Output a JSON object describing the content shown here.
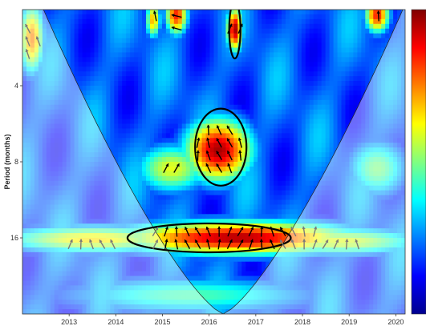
{
  "chart_data": {
    "type": "heatmap",
    "subtype": "wavelet-coherence",
    "ylabel": "Period (months)",
    "xlabel": "",
    "x_ticks": [
      "2013",
      "2014",
      "2015",
      "2016",
      "2017",
      "2018",
      "2019",
      "2020"
    ],
    "x_tick_values": [
      2013,
      2014,
      2015,
      2016,
      2017,
      2018,
      2019,
      2020
    ],
    "xlim": [
      2012.0,
      2020.2
    ],
    "y_ticks": [
      "4",
      "8",
      "16"
    ],
    "y_tick_values": [
      4,
      8,
      16
    ],
    "ylim_period": [
      2,
      32
    ],
    "y_scale": "log2",
    "y_inverted": true,
    "colorbar": {
      "position": "right",
      "range": [
        0,
        1
      ],
      "colormap": "jet",
      "tick_labels_visible": false
    },
    "hotspots": [
      {
        "x": 2016.55,
        "period": 2.4,
        "value": 0.97,
        "sx": 0.13,
        "sy": 0.22
      },
      {
        "x": 2015.3,
        "period": 2.1,
        "value": 0.85,
        "sx": 0.18,
        "sy": 0.2
      },
      {
        "x": 2014.8,
        "period": 2.2,
        "value": 0.7,
        "sx": 0.12,
        "sy": 0.18
      },
      {
        "x": 2019.6,
        "period": 2.1,
        "value": 0.85,
        "sx": 0.2,
        "sy": 0.18
      },
      {
        "x": 2012.2,
        "period": 2.6,
        "value": 0.75,
        "sx": 0.2,
        "sy": 0.35
      },
      {
        "x": 2016.2,
        "period": 7.2,
        "value": 0.96,
        "sx": 0.55,
        "sy": 0.32
      },
      {
        "x": 2015.2,
        "period": 8.5,
        "value": 0.6,
        "sx": 0.6,
        "sy": 0.25
      },
      {
        "x": 2016.6,
        "period": 16.0,
        "value": 0.95,
        "sx": 1.9,
        "sy": 0.17
      },
      {
        "x": 2013.5,
        "period": 16.2,
        "value": 0.65,
        "sx": 1.5,
        "sy": 0.14
      },
      {
        "x": 2018.8,
        "period": 16.5,
        "value": 0.6,
        "sx": 1.4,
        "sy": 0.14
      },
      {
        "x": 2015.6,
        "period": 27.0,
        "value": 0.45,
        "sx": 2.2,
        "sy": 0.2
      },
      {
        "x": 2019.6,
        "period": 8.5,
        "value": 0.5,
        "sx": 0.5,
        "sy": 0.3
      }
    ],
    "significance_contours": [
      {
        "x_center": 2016.55,
        "period_center": 2.4,
        "x_halfwidth": 0.12,
        "period_ratio": 1.3
      },
      {
        "x_center": 2016.25,
        "period_center": 7.0,
        "x_halfwidth": 0.55,
        "period_ratio": 1.42
      },
      {
        "x_center": 2016.0,
        "period_center": 16.0,
        "x_halfwidth": 1.75,
        "period_ratio": 1.14
      }
    ],
    "cone_of_influence": {
      "apex_x": 2016.3,
      "apex_period": 32,
      "top_left_x": 2012.3,
      "top_right_x": 2020.0
    },
    "phase_arrows": "mostly pointing up (in-phase, lagging) in the significant regions; gray outside the cone of influence"
  },
  "colors": {
    "low": "#00008f",
    "high": "#800000",
    "contour": "#000000",
    "arrow_inside": "#000000",
    "arrow_outside": "#7a7a7a"
  }
}
